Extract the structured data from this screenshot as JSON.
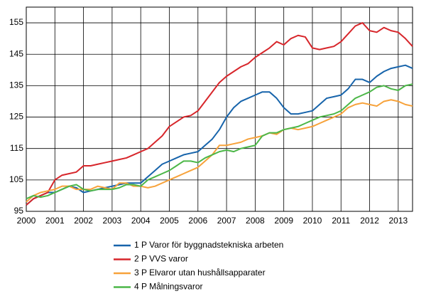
{
  "chart_data": {
    "type": "line",
    "x": [
      2000,
      2000.25,
      2000.5,
      2000.75,
      2001,
      2001.25,
      2001.5,
      2001.75,
      2002,
      2002.25,
      2002.5,
      2002.75,
      2003,
      2003.25,
      2003.5,
      2003.75,
      2004,
      2004.25,
      2004.5,
      2004.75,
      2005,
      2005.25,
      2005.5,
      2005.75,
      2006,
      2006.25,
      2006.5,
      2006.75,
      2007,
      2007.25,
      2007.5,
      2007.75,
      2008,
      2008.25,
      2008.5,
      2008.75,
      2009,
      2009.25,
      2009.5,
      2009.75,
      2010,
      2010.25,
      2010.5,
      2010.75,
      2011,
      2011.25,
      2011.5,
      2011.75,
      2012,
      2012.25,
      2012.5,
      2012.75,
      2013,
      2013.25,
      2013.5
    ],
    "series": [
      {
        "name": "1 P Varor för byggnadstekniska arbeten",
        "color": "#1764ab",
        "values": [
          97,
          99,
          100,
          101,
          101,
          102,
          103,
          102.5,
          101,
          101.5,
          102,
          102.5,
          103,
          103.5,
          104,
          104,
          104,
          106,
          108,
          110,
          111,
          112,
          113,
          113.5,
          114,
          116,
          118,
          121,
          125,
          128,
          130,
          131,
          132,
          133,
          133,
          131,
          128,
          126,
          126,
          126.5,
          127,
          129,
          131,
          131.5,
          132,
          134,
          137,
          137,
          136,
          138,
          139.5,
          140.5,
          141,
          141.5,
          140.5
        ]
      },
      {
        "name": "2 P VVS varor",
        "color": "#d7262b",
        "values": [
          97,
          99,
          100,
          101,
          105,
          106.5,
          107,
          107.5,
          109.5,
          109.5,
          110,
          110.5,
          111,
          111.5,
          112,
          113,
          114,
          115,
          117,
          119,
          122,
          123.5,
          125,
          125.5,
          127,
          130,
          133,
          136,
          138,
          139.5,
          141,
          142,
          144,
          145.5,
          147,
          149,
          148,
          150,
          151,
          150.5,
          147,
          146.5,
          147,
          147.5,
          149,
          151.5,
          154,
          155,
          152.5,
          152,
          153.5,
          152.5,
          152,
          150,
          147.5
        ]
      },
      {
        "name": "3 P Elvaror utan hushållsapparater",
        "color": "#f7a23a",
        "values": [
          98,
          100,
          101,
          101.5,
          102,
          103,
          103,
          102,
          102,
          102,
          103,
          102.5,
          102,
          104,
          104,
          103,
          103,
          102.5,
          103,
          104,
          105,
          106,
          107,
          108,
          109,
          111,
          113,
          116,
          116,
          116.5,
          117,
          118,
          118.5,
          119,
          120,
          119.5,
          121,
          121.5,
          121,
          121.5,
          122,
          123,
          124,
          125,
          126,
          128,
          129,
          129.5,
          129,
          128.5,
          130,
          130.5,
          130,
          129,
          128.5
        ]
      },
      {
        "name": "4 P Målningsvaror",
        "color": "#4cb748",
        "values": [
          99,
          100,
          99.5,
          100,
          101,
          102,
          103,
          103.5,
          102,
          101.5,
          102,
          102,
          102,
          102.5,
          103.5,
          103.5,
          103,
          105,
          106,
          107,
          108,
          109.5,
          111,
          111,
          110.5,
          112,
          113,
          114,
          114.5,
          114,
          115,
          115.5,
          116,
          119,
          120,
          120,
          121,
          121.5,
          122,
          123,
          124,
          125,
          125.5,
          126,
          127,
          129,
          131,
          132,
          133,
          134.5,
          135,
          134,
          133.5,
          135,
          135.5
        ]
      }
    ],
    "xlim": [
      2000,
      2013.5
    ],
    "xticks": [
      2000,
      2001,
      2002,
      2003,
      2004,
      2005,
      2006,
      2007,
      2008,
      2009,
      2010,
      2011,
      2012,
      2013
    ],
    "ylim": [
      95,
      160
    ],
    "yticks": [
      95,
      105,
      115,
      125,
      135,
      145,
      155
    ],
    "grid": true
  }
}
